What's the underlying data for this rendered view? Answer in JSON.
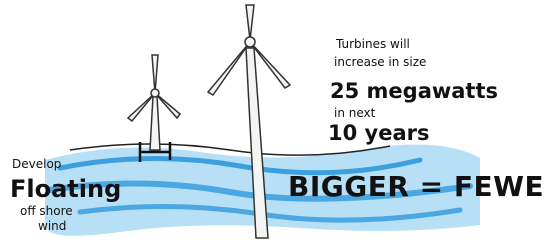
{
  "annotations": {
    "turbines_line1": "Turbines will",
    "turbines_line2": "increase in size",
    "capacity": "25 megawatts",
    "timeframe_line1": "in next",
    "timeframe_line2": "10 years",
    "develop": "Develop",
    "floating": "Floating",
    "offshore": "off shore",
    "wind": "wind",
    "slogan": "BIGGER = FEWER"
  }
}
